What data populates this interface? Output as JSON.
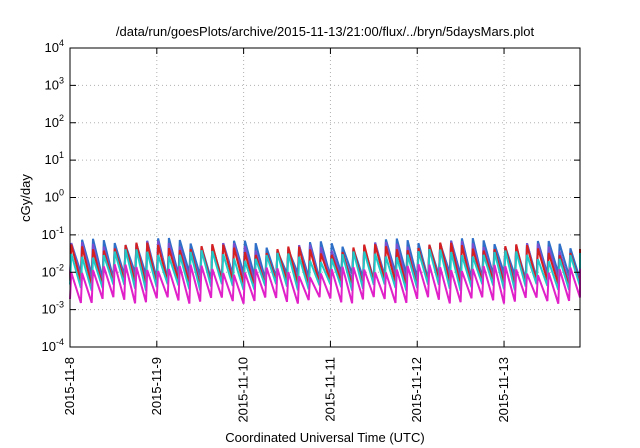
{
  "chart_data": {
    "type": "line",
    "title": "/data/run/goesPlots/archive/2015-11-13/21:00/flux/../bryn/5daysMars.plot",
    "xlabel": "Coordinated Universal Time (UTC)",
    "ylabel": "cGy/day",
    "yscale": "log",
    "ylim": [
      0.0001,
      10000
    ],
    "xlim": [
      "2015-11-08 00:00",
      "2015-11-13 21:00"
    ],
    "grid": true,
    "legend": "none",
    "y_ticks": [
      {
        "base": "10",
        "exp": "4"
      },
      {
        "base": "10",
        "exp": "3"
      },
      {
        "base": "10",
        "exp": "2"
      },
      {
        "base": "10",
        "exp": "1"
      },
      {
        "base": "10",
        "exp": "0"
      },
      {
        "base": "10",
        "exp": "-1"
      },
      {
        "base": "10",
        "exp": "-2"
      },
      {
        "base": "10",
        "exp": "-3"
      },
      {
        "base": "10",
        "exp": "-4"
      }
    ],
    "x_ticks": [
      "2015-11-8",
      "2015-11-9",
      "2015-11-10",
      "2015-11-11",
      "2015-11-12",
      "2015-11-13"
    ],
    "pattern": {
      "description_of_values": "sawtooth dose-rate traces, about one cycle every 3 hours",
      "cycle_hours": 3,
      "peaks_per_day": 8
    },
    "series": [
      {
        "color": "#2e6fc8",
        "peak": 0.06,
        "trough": 0.008
      },
      {
        "color": "#7a4fcf",
        "peak": 0.05,
        "trough": 0.006
      },
      {
        "color": "#d62020",
        "peak": 0.045,
        "trough": 0.005
      },
      {
        "color": "#20c8c8",
        "peak": 0.03,
        "trough": 0.004
      },
      {
        "color": "#e020c8",
        "peak": 0.012,
        "trough": 0.0018
      }
    ],
    "colors": {
      "blue": "#2e6fc8",
      "purple": "#7a4fcf",
      "red": "#d62020",
      "cyan": "#20c8c8",
      "magenta": "#e020c8"
    }
  }
}
